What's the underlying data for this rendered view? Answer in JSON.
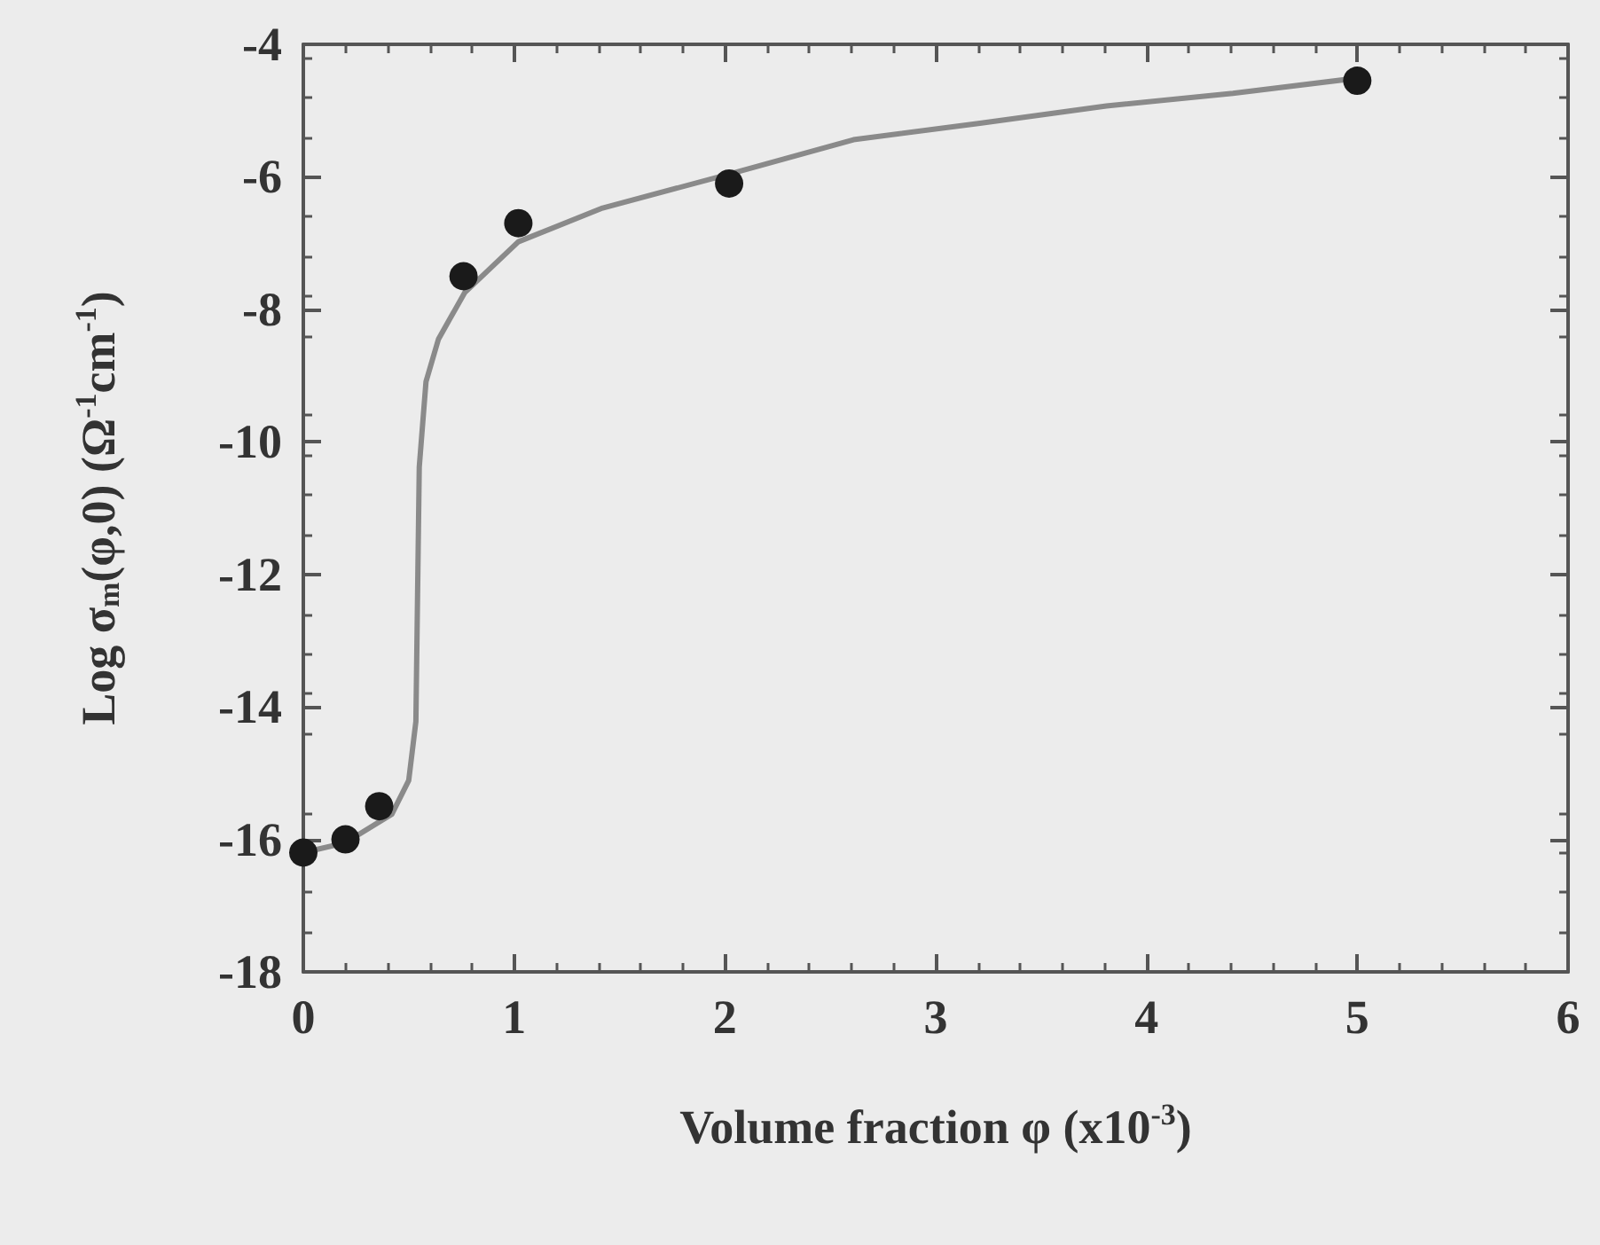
{
  "chart_data": {
    "type": "scatter",
    "xlabel": "Volume fraction φ (x10$^{-3}$)",
    "ylabel": "Log σ$_{m}$(φ,0) (Ω$^{-1}$cm$^{-1}$)",
    "xlim": [
      0,
      6
    ],
    "xticks": [
      0,
      1,
      2,
      3,
      4,
      5,
      6
    ],
    "ylim": [
      -18,
      -4
    ],
    "yticks": [
      -18,
      -16,
      -14,
      -12,
      -10,
      -8,
      -6,
      -4
    ],
    "marker": "circle",
    "series": [
      {
        "type": "line",
        "color": "#8a8a8a",
        "marker": "none",
        "x": [
          0,
          0.2,
          0.42,
          0.5,
          0.534,
          0.542,
          0.55,
          0.582,
          0.641,
          0.765,
          1.02,
          1.42,
          2.02,
          2.61,
          3.21,
          3.81,
          4.41,
          5.0
        ],
        "values": [
          -16.2,
          -16.05,
          -15.62,
          -15.11,
          -14.22,
          -12.3,
          -10.38,
          -9.09,
          -8.45,
          -7.75,
          -6.98,
          -6.47,
          -5.96,
          -5.44,
          -5.19,
          -4.93,
          -4.74,
          -4.51
        ]
      },
      {
        "color": "#1a1a1a",
        "x": [
          0,
          0.2,
          0.36,
          0.76,
          1.02,
          2.02,
          5.0
        ],
        "values": [
          -16.2,
          -16.0,
          -15.5,
          -7.5,
          -6.7,
          -6.1,
          -4.55
        ]
      }
    ]
  }
}
